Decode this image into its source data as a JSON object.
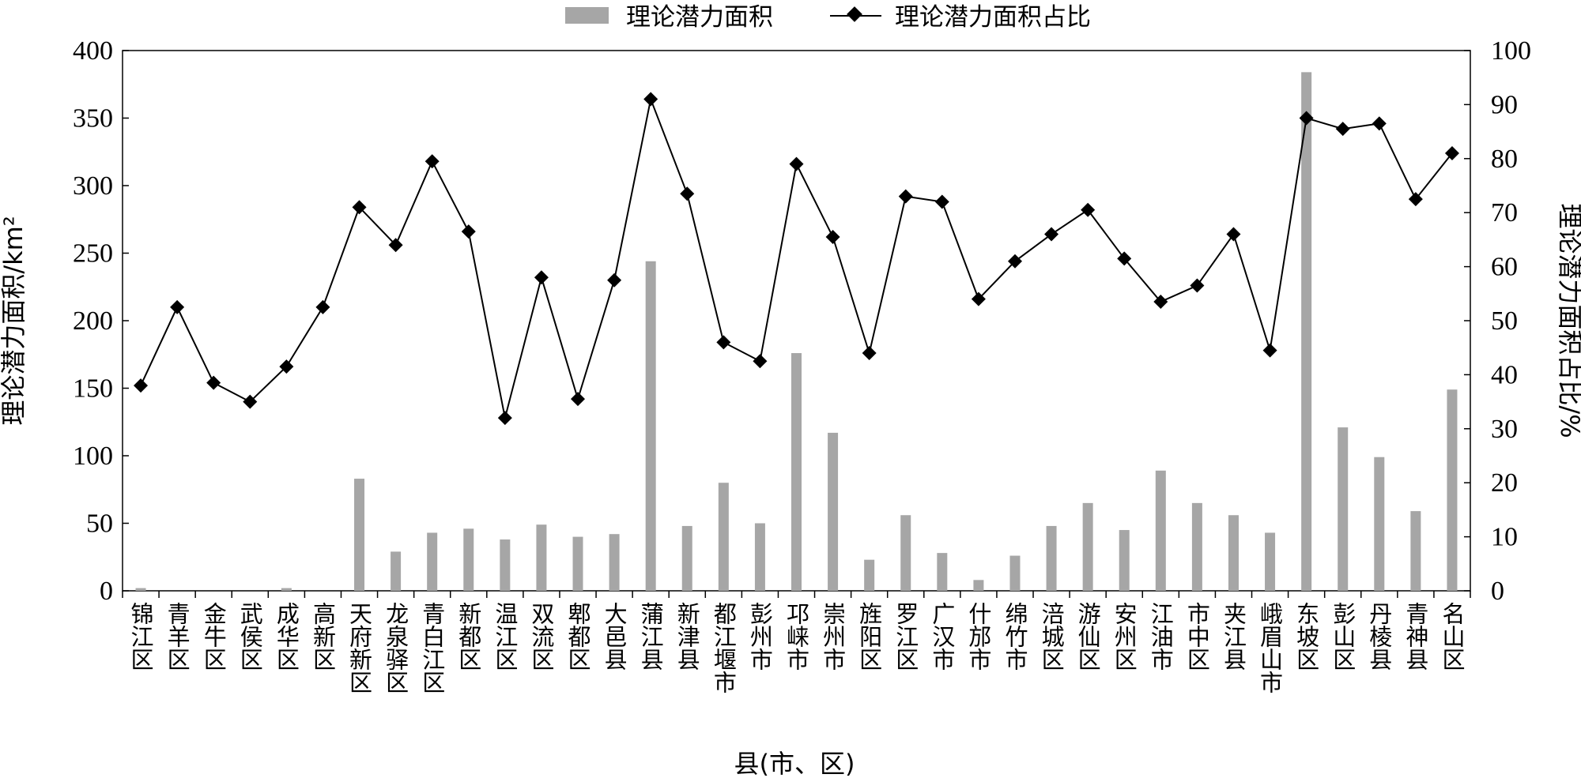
{
  "chart_data": {
    "type": "bar",
    "xlabel": "县(市、区)",
    "ylabel": "理论潜力面积/km²",
    "ylabel_right": "理论潜力面积占比/%",
    "ylim": [
      0,
      400
    ],
    "yticks": [
      0,
      50,
      100,
      150,
      200,
      250,
      300,
      350,
      400
    ],
    "ylim_right": [
      0,
      100
    ],
    "yticks_right": [
      0,
      10,
      20,
      30,
      40,
      50,
      60,
      70,
      80,
      90,
      100
    ],
    "grid": false,
    "legend_position": "top-center",
    "categories": [
      "锦江区",
      "青羊区",
      "金牛区",
      "武侯区",
      "成华区",
      "高新区",
      "天府新区",
      "龙泉驿区",
      "青白江区",
      "新都区",
      "温江区",
      "双流区",
      "郫都区",
      "大邑县",
      "蒲江县",
      "新津县",
      "都江堰市",
      "彭州市",
      "邛崃市",
      "崇州市",
      "旌阳区",
      "罗江区",
      "广汉市",
      "什邡市",
      "绵竹市",
      "涪城区",
      "游仙区",
      "安州区",
      "江油市",
      "市中区",
      "夹江县",
      "峨眉山市",
      "东坡区",
      "彭山区",
      "丹棱县",
      "青神县",
      "名山区"
    ],
    "series": [
      {
        "name": "理论潜力面积",
        "type": "bar",
        "axis": "left",
        "color": "#a6a6a6",
        "values": [
          2,
          0,
          0,
          0,
          2,
          0,
          83,
          29,
          43,
          46,
          38,
          49,
          40,
          42,
          244,
          48,
          80,
          50,
          176,
          117,
          23,
          56,
          28,
          8,
          26,
          48,
          65,
          45,
          89,
          65,
          56,
          43,
          384,
          121,
          99,
          59,
          149
        ]
      },
      {
        "name": "理论潜力面积占比",
        "type": "line",
        "axis": "right",
        "marker": "diamond",
        "color": "#000000",
        "values": [
          38,
          52.5,
          38.5,
          35,
          41.5,
          52.5,
          71,
          64,
          79.5,
          66.5,
          32,
          58,
          35.5,
          57.5,
          91,
          73.5,
          46,
          42.5,
          79,
          65.5,
          44,
          73,
          72,
          54,
          61,
          66,
          70.5,
          61.5,
          53.5,
          56.5,
          66,
          44.5,
          87.5,
          85.5,
          86.5,
          72.5,
          81
        ]
      }
    ]
  }
}
